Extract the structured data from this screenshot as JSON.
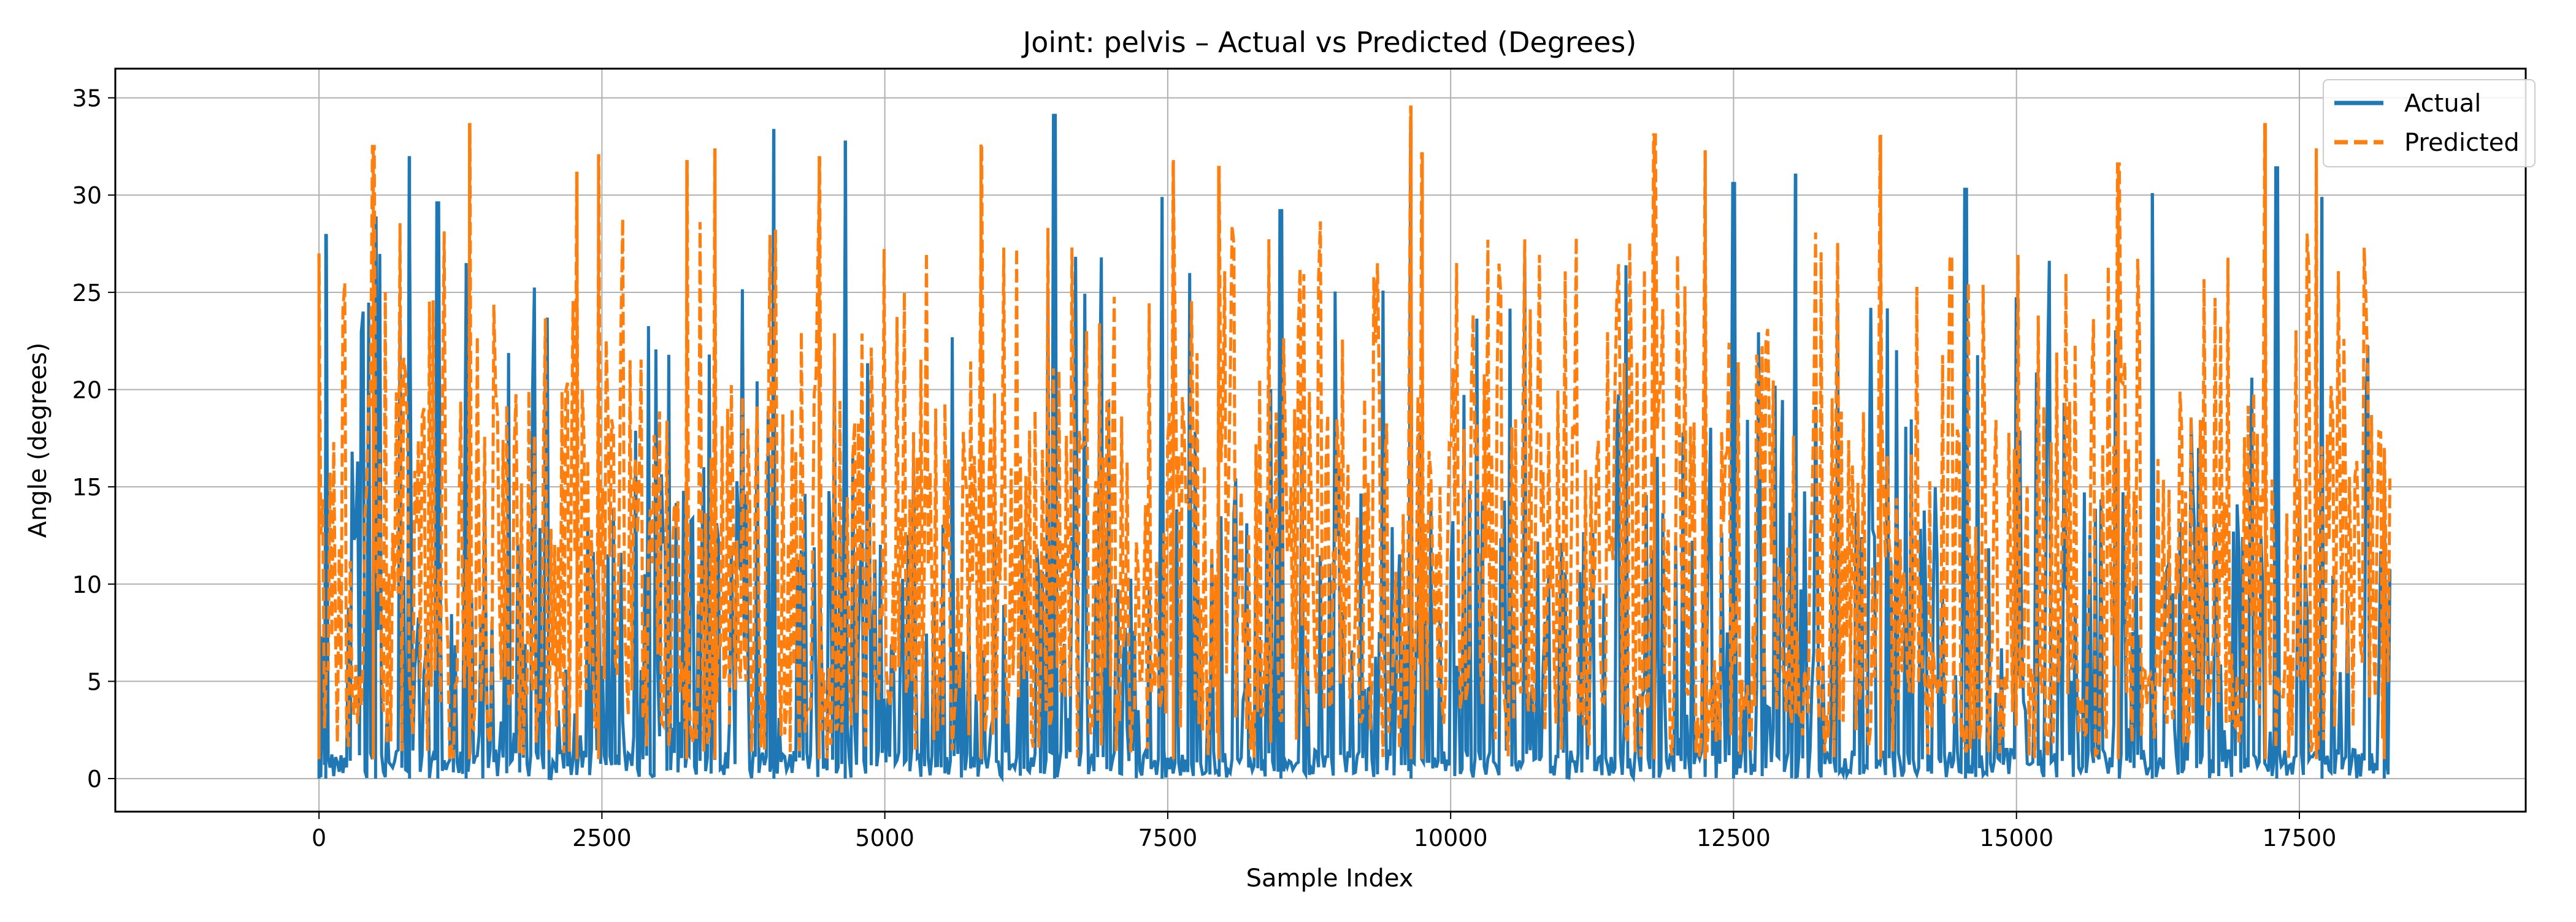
{
  "chart_data": {
    "type": "line",
    "title": "Joint: pelvis – Actual vs Predicted (Degrees)",
    "xlabel": "Sample Index",
    "ylabel": "Angle (degrees)",
    "xlim": [
      -1800,
      19500
    ],
    "ylim": [
      -1.7,
      36.5
    ],
    "xticks": [
      0,
      2500,
      5000,
      7500,
      10000,
      12500,
      15000,
      17500
    ],
    "xtick_labels": [
      "0",
      "2500",
      "5000",
      "7500",
      "10000",
      "12500",
      "15000",
      "17500"
    ],
    "yticks": [
      0,
      5,
      10,
      15,
      20,
      25,
      30,
      35
    ],
    "ytick_labels": [
      "0",
      "5",
      "10",
      "15",
      "20",
      "25",
      "30",
      "35"
    ],
    "grid": true,
    "legend_position": "top-right",
    "x_range": [
      0,
      18300
    ],
    "series": [
      {
        "name": "Actual",
        "color": "#1f77b4",
        "line_style": "solid",
        "baseline_range": [
          0,
          1.5
        ],
        "peaks": [
          {
            "x": 0,
            "y": 10.2
          },
          {
            "x": 60,
            "y": 28.0
          },
          {
            "x": 500,
            "y": 28.9
          },
          {
            "x": 800,
            "y": 32.0
          },
          {
            "x": 1050,
            "y": 29.6
          },
          {
            "x": 1300,
            "y": 26.5
          },
          {
            "x": 4020,
            "y": 33.4
          },
          {
            "x": 4650,
            "y": 32.8
          },
          {
            "x": 6500,
            "y": 34.1
          },
          {
            "x": 7450,
            "y": 29.9
          },
          {
            "x": 8500,
            "y": 29.2
          },
          {
            "x": 9650,
            "y": 33.8
          },
          {
            "x": 12500,
            "y": 30.6
          },
          {
            "x": 13050,
            "y": 31.1
          },
          {
            "x": 14550,
            "y": 30.3
          },
          {
            "x": 16200,
            "y": 30.1
          },
          {
            "x": 17300,
            "y": 31.4
          },
          {
            "x": 17700,
            "y": 29.9
          },
          {
            "x": 18250,
            "y": 15.0
          }
        ]
      },
      {
        "name": "Predicted",
        "color": "#ff7f0e",
        "line_style": "dashed",
        "baseline_range": [
          1.0,
          5.0
        ],
        "peaks": [
          {
            "x": 0,
            "y": 27.0
          },
          {
            "x": 480,
            "y": 32.5
          },
          {
            "x": 1330,
            "y": 33.7
          },
          {
            "x": 2280,
            "y": 31.2
          },
          {
            "x": 2470,
            "y": 32.1
          },
          {
            "x": 3250,
            "y": 31.8
          },
          {
            "x": 3500,
            "y": 32.4
          },
          {
            "x": 4420,
            "y": 32.0
          },
          {
            "x": 5850,
            "y": 32.6
          },
          {
            "x": 7550,
            "y": 31.8
          },
          {
            "x": 7950,
            "y": 31.5
          },
          {
            "x": 9650,
            "y": 34.6
          },
          {
            "x": 9750,
            "y": 32.2
          },
          {
            "x": 11800,
            "y": 33.1
          },
          {
            "x": 12250,
            "y": 32.3
          },
          {
            "x": 13800,
            "y": 33.1
          },
          {
            "x": 15900,
            "y": 31.6
          },
          {
            "x": 17200,
            "y": 33.7
          },
          {
            "x": 17650,
            "y": 32.4
          },
          {
            "x": 18250,
            "y": 17.0
          }
        ]
      }
    ]
  }
}
